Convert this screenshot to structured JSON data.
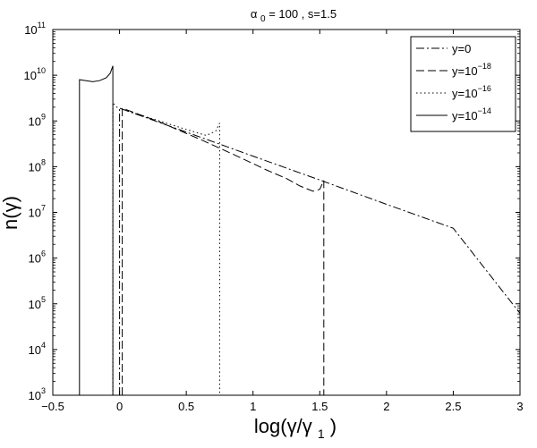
{
  "chart_data": {
    "type": "line",
    "title": {
      "symbol": "α",
      "subscript": "0",
      "rest": " = 100 , s=1.5"
    },
    "xlabel": {
      "pre": "log(γ/γ",
      "subscript": "1",
      "post": ")"
    },
    "ylabel": "n(γ)",
    "xlim": [
      -0.5,
      3.0
    ],
    "ylim": [
      1000,
      100000000000
    ],
    "yscale": "log",
    "grid": false,
    "legend_position": "top-right",
    "x_ticks": [
      -0.5,
      0,
      0.5,
      1,
      1.5,
      2,
      2.5,
      3
    ],
    "x_tick_labels": [
      "−0.5",
      "0",
      "0.5",
      "1",
      "1.5",
      "2",
      "2.5",
      "3"
    ],
    "y_ticks": [
      {
        "exp": 3,
        "base": "10",
        "power": "3"
      },
      {
        "exp": 4,
        "base": "10",
        "power": "4"
      },
      {
        "exp": 5,
        "base": "10",
        "power": "5"
      },
      {
        "exp": 6,
        "base": "10",
        "power": "6"
      },
      {
        "exp": 7,
        "base": "10",
        "power": "7"
      },
      {
        "exp": 8,
        "base": "10",
        "power": "8"
      },
      {
        "exp": 9,
        "base": "10",
        "power": "9"
      },
      {
        "exp": 10,
        "base": "10",
        "power": "10"
      },
      {
        "exp": 11,
        "base": "10",
        "power": "11"
      }
    ],
    "series": [
      {
        "name": "y=0",
        "name_base": "y=0",
        "name_power": "",
        "style": "dashdot",
        "color": "#000000",
        "x": [
          0,
          0,
          0.5,
          1.0,
          1.5,
          2.0,
          2.5,
          3.0,
          3.0
        ],
        "y": [
          1000,
          1900000000,
          570000000,
          170000000,
          51000000,
          15000000,
          4500000,
          62000,
          1000
        ]
      },
      {
        "name": "y=10^-18",
        "name_base": "y=10",
        "name_power": "−18",
        "style": "dashed",
        "color": "#000000",
        "x": [
          0.02,
          0.02,
          0.3,
          0.6,
          0.9,
          1.1,
          1.25,
          1.35,
          1.45,
          1.5,
          1.53,
          1.53
        ],
        "y": [
          1000,
          1900000000,
          950000000,
          400000000,
          160000000,
          85000000,
          55000000,
          38000000,
          29000000,
          32000000,
          50000000,
          1000
        ]
      },
      {
        "name": "y=10^-16",
        "name_base": "y=10",
        "name_power": "−16",
        "style": "dotted",
        "color": "#000000",
        "x": [
          -0.05,
          -0.05,
          -0.02,
          0.1,
          0.3,
          0.5,
          0.65,
          0.72,
          0.75,
          0.75
        ],
        "y": [
          1000,
          2500000000,
          2000000000,
          1500000000,
          1000000000,
          650000000,
          480000000,
          600000000,
          900000000,
          1000
        ]
      },
      {
        "name": "y=10^-14",
        "name_base": "y=10",
        "name_power": "−14",
        "style": "solid",
        "color": "#000000",
        "x": [
          -0.3,
          -0.3,
          -0.25,
          -0.2,
          -0.15,
          -0.1,
          -0.07,
          -0.05,
          -0.05
        ],
        "y": [
          1000,
          8000000000,
          7600000000,
          7200000000,
          7600000000,
          8800000000,
          11000000000,
          16000000000,
          1000
        ]
      }
    ]
  }
}
